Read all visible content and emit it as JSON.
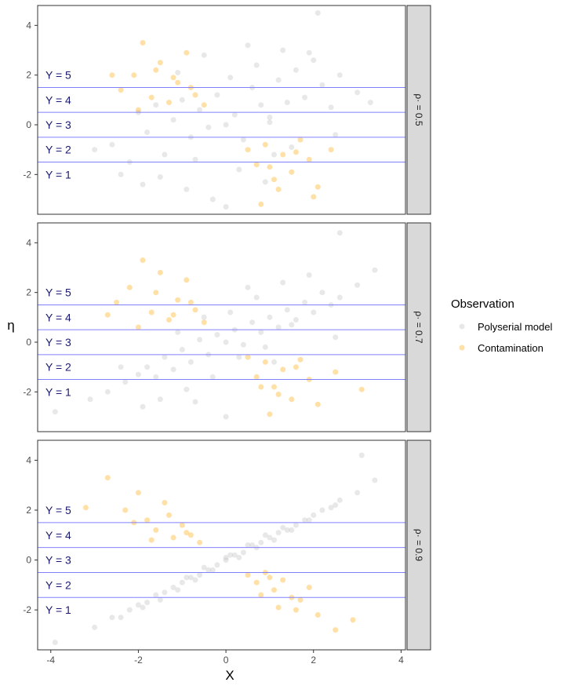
{
  "chart_data": {
    "type": "scatter",
    "xlabel": "X",
    "ylabel": "η",
    "xlim": [
      -4.3,
      4.1
    ],
    "ylim": [
      -3.6,
      4.8
    ],
    "x_ticks": [
      -4,
      -2,
      0,
      2,
      4
    ],
    "y_ticks": [
      -2,
      0,
      2,
      4
    ],
    "thresholds": [
      -1.5,
      -0.5,
      0.5,
      1.5
    ],
    "category_labels": [
      "Y = 5",
      "Y = 4",
      "Y = 3",
      "Y = 2",
      "Y = 1"
    ],
    "legend": {
      "title": "Observation",
      "position": "right",
      "entries": [
        {
          "label": "Polyserial model",
          "color": "#bebebe"
        },
        {
          "label": "Contamination",
          "color": "#ffa500"
        }
      ]
    },
    "colors": {
      "polyserial": "#bebebe",
      "contamination": "#ffa500",
      "threshold_line": "#8080ff",
      "category_text": "#191970",
      "strip_bg": "#d9d9d9"
    },
    "panels": [
      {
        "strip": "ρ· = 0.5",
        "rho": 0.5,
        "series": [
          {
            "name": "Polyserial model",
            "x": [
              -3.0,
              -2.6,
              -2.2,
              -2.0,
              -1.8,
              -1.6,
              -1.4,
              -1.2,
              -1.0,
              -0.8,
              -0.6,
              -0.4,
              -0.2,
              0.0,
              0.2,
              0.4,
              0.6,
              0.8,
              1.0,
              1.2,
              1.4,
              1.6,
              1.8,
              2.0,
              2.2,
              2.4,
              2.6,
              3.0,
              3.3,
              -1.5,
              -0.9,
              -0.3,
              0.3,
              0.9,
              1.5,
              -1.1,
              -0.5,
              0.1,
              0.7,
              1.3,
              1.9,
              -2.4,
              2.5,
              -0.7,
              0.5,
              1.1,
              -1.9,
              0.0,
              2.1,
              1.0
            ],
            "y": [
              -1.0,
              -0.8,
              -1.5,
              0.5,
              -0.3,
              0.8,
              -1.2,
              0.2,
              1.0,
              -0.5,
              0.6,
              -0.1,
              1.2,
              0.0,
              0.4,
              -0.6,
              1.5,
              0.8,
              0.3,
              1.8,
              0.9,
              2.2,
              1.1,
              2.6,
              1.6,
              0.7,
              2.0,
              1.3,
              0.9,
              -2.1,
              -2.6,
              -3.0,
              -1.8,
              -2.3,
              -0.9,
              2.1,
              2.8,
              1.9,
              2.4,
              3.0,
              2.9,
              -2.0,
              -0.4,
              -1.4,
              3.2,
              -1.2,
              -2.4,
              -3.3,
              4.5,
              0.1
            ]
          },
          {
            "name": "Contamination",
            "x": [
              -2.4,
              -2.1,
              -1.9,
              -1.7,
              -1.5,
              -1.3,
              -1.1,
              -0.9,
              -0.7,
              -0.5,
              -2.0,
              -1.6,
              -1.2,
              -0.8,
              -2.6,
              0.5,
              0.7,
              0.9,
              1.1,
              1.3,
              1.5,
              1.7,
              1.9,
              2.1,
              2.4,
              0.8,
              1.2,
              1.6,
              2.0,
              1.0
            ],
            "y": [
              1.4,
              2.0,
              3.3,
              1.1,
              2.5,
              0.9,
              1.7,
              2.9,
              1.2,
              0.8,
              0.6,
              2.2,
              1.9,
              1.5,
              2.0,
              -1.0,
              -1.6,
              -0.8,
              -2.2,
              -1.2,
              -1.9,
              -0.6,
              -1.4,
              -2.5,
              -1.0,
              -3.2,
              -2.6,
              -1.1,
              -2.9,
              -1.7
            ]
          }
        ]
      },
      {
        "strip": "ρ· = 0.7",
        "rho": 0.7,
        "series": [
          {
            "name": "Polyserial model",
            "x": [
              -3.1,
              -2.7,
              -2.3,
              -2.0,
              -1.8,
              -1.6,
              -1.4,
              -1.2,
              -1.0,
              -0.8,
              -0.6,
              -0.4,
              -0.2,
              0.0,
              0.2,
              0.4,
              0.6,
              0.8,
              1.0,
              1.2,
              1.4,
              1.6,
              1.8,
              2.0,
              2.2,
              2.4,
              2.6,
              3.0,
              3.4,
              -1.5,
              -0.9,
              -0.3,
              0.3,
              0.9,
              1.5,
              -1.1,
              -0.5,
              0.1,
              0.7,
              1.3,
              1.9,
              -2.4,
              2.5,
              -0.7,
              0.5,
              1.1,
              -1.9,
              -3.9,
              2.6,
              0.0
            ],
            "y": [
              -2.3,
              -2.0,
              -1.6,
              -1.3,
              -1.0,
              -1.4,
              -0.6,
              -1.1,
              -0.3,
              -0.8,
              0.1,
              -0.5,
              0.3,
              0.0,
              0.5,
              -0.1,
              0.8,
              0.4,
              1.0,
              0.6,
              1.3,
              0.9,
              1.6,
              1.2,
              2.0,
              1.5,
              1.8,
              2.3,
              2.9,
              -2.3,
              -1.9,
              -1.4,
              -0.6,
              -0.2,
              0.7,
              0.4,
              1.0,
              1.2,
              1.8,
              2.4,
              2.7,
              -1.0,
              0.2,
              -2.4,
              2.2,
              -0.8,
              -2.6,
              -2.8,
              4.4,
              -3.0
            ]
          },
          {
            "name": "Contamination",
            "x": [
              -2.5,
              -2.2,
              -1.9,
              -1.7,
              -1.5,
              -1.3,
              -1.1,
              -0.9,
              -0.7,
              -0.5,
              -2.0,
              -1.6,
              -1.2,
              -0.8,
              -2.7,
              0.5,
              0.7,
              0.9,
              1.1,
              1.3,
              1.5,
              1.7,
              1.9,
              2.1,
              2.5,
              0.8,
              1.2,
              1.6,
              3.1,
              1.0
            ],
            "y": [
              1.6,
              2.2,
              3.3,
              1.2,
              2.8,
              0.9,
              1.7,
              2.5,
              1.3,
              0.8,
              0.6,
              2.0,
              1.1,
              1.6,
              1.1,
              -0.6,
              -1.4,
              -0.8,
              -1.8,
              -1.1,
              -2.3,
              -0.7,
              -1.5,
              -2.5,
              -1.2,
              -1.8,
              -2.1,
              -1.0,
              -1.9,
              -2.9
            ]
          }
        ]
      },
      {
        "strip": "ρ· = 0.9",
        "rho": 0.9,
        "series": [
          {
            "name": "Polyserial model",
            "x": [
              -3.0,
              -2.6,
              -2.2,
              -2.0,
              -1.8,
              -1.6,
              -1.4,
              -1.2,
              -1.0,
              -0.8,
              -0.6,
              -0.4,
              -0.2,
              0.0,
              0.2,
              0.4,
              0.6,
              0.8,
              1.0,
              1.2,
              1.4,
              1.6,
              1.8,
              2.0,
              2.2,
              2.4,
              2.6,
              3.0,
              3.4,
              -1.5,
              -0.9,
              -0.3,
              0.3,
              0.9,
              1.5,
              -1.1,
              -0.5,
              0.1,
              0.7,
              1.3,
              1.9,
              -2.4,
              2.5,
              -0.7,
              0.5,
              1.1,
              -1.9,
              -3.9,
              3.1,
              0.0
            ],
            "y": [
              -2.7,
              -2.3,
              -2.0,
              -1.8,
              -1.7,
              -1.4,
              -1.3,
              -1.1,
              -0.9,
              -0.7,
              -0.6,
              -0.4,
              -0.2,
              0.0,
              0.2,
              0.3,
              0.6,
              0.7,
              0.9,
              1.1,
              1.2,
              1.4,
              1.6,
              1.8,
              2.0,
              2.1,
              2.4,
              2.7,
              3.2,
              -1.6,
              -0.7,
              -0.4,
              0.1,
              1.0,
              1.2,
              -1.2,
              -0.3,
              0.2,
              0.5,
              1.3,
              1.6,
              -2.3,
              2.2,
              -0.8,
              0.6,
              0.8,
              -1.9,
              -3.3,
              4.2,
              0.1
            ]
          },
          {
            "name": "Contamination",
            "x": [
              -2.7,
              -2.3,
              -2.0,
              -1.8,
              -1.6,
              -1.4,
              -1.2,
              -1.0,
              -0.8,
              -0.6,
              -2.1,
              -1.7,
              -1.3,
              -0.9,
              -3.2,
              0.5,
              0.7,
              0.9,
              1.1,
              1.3,
              1.5,
              1.7,
              1.9,
              2.1,
              2.5,
              0.8,
              1.2,
              1.6,
              2.9,
              1.0
            ],
            "y": [
              3.3,
              2.0,
              2.7,
              1.6,
              1.2,
              2.3,
              0.9,
              1.4,
              1.0,
              0.7,
              1.5,
              0.8,
              1.8,
              1.1,
              2.1,
              -0.6,
              -0.9,
              -0.5,
              -1.2,
              -0.8,
              -1.5,
              -1.6,
              -1.1,
              -2.2,
              -2.8,
              -1.4,
              -1.9,
              -2.0,
              -2.4,
              -0.7
            ]
          }
        ]
      }
    ]
  }
}
